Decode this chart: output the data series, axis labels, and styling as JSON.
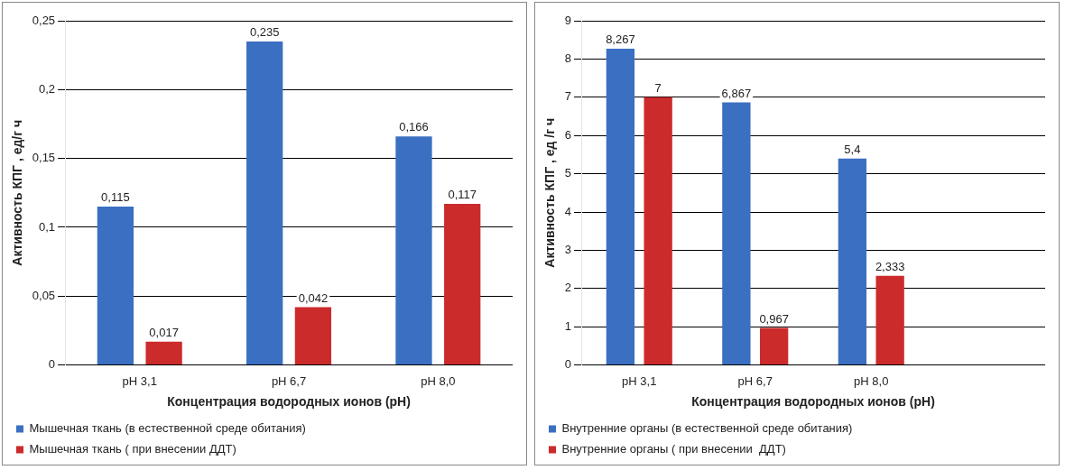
{
  "chart_data": [
    {
      "type": "bar",
      "xlabel": "Концентрация водородных ионов (pH)",
      "ylabel": "Активность КПГ , ед/г ч",
      "categories": [
        "pH 3,1",
        "pH 6,7",
        "pH 8,0"
      ],
      "series": [
        {
          "name": "Мышечная ткань (в естественной среде обитания)",
          "color": "#3b6fc2",
          "values": [
            0.115,
            0.235,
            0.166
          ],
          "value_labels": [
            "0,115",
            "0,235",
            "0,166"
          ]
        },
        {
          "name": "Мышечная ткань ( при внесении ДДТ)",
          "color": "#cc2b2b",
          "values": [
            0.017,
            0.042,
            0.117
          ],
          "value_labels": [
            "0,017",
            "0,042",
            "0,117"
          ]
        }
      ],
      "ylim": [
        0,
        0.25
      ],
      "yticks": [
        0,
        {
          "value": 0.05,
          "label": "0,05"
        },
        {
          "value": 0.1,
          "label": "0,1"
        },
        {
          "value": 0.15,
          "label": "0,15"
        },
        {
          "value": 0.2,
          "label": "0,2"
        },
        {
          "value": 0.25,
          "label": "0,25"
        }
      ],
      "grid": "y",
      "legend": "bottom"
    },
    {
      "type": "bar",
      "xlabel": "Концентрация водородных ионов (pH)",
      "ylabel": "Активность КПГ , ед /г ч",
      "categories": [
        "pH 3,1",
        "pH 6,7",
        "pH 8,0",
        null
      ],
      "series": [
        {
          "name": "Внутренние органы (в естественной среде обитания)",
          "color": "#3b6fc2",
          "values": [
            8.267,
            6.867,
            5.4,
            null
          ],
          "value_labels": [
            "8,267",
            "6,867",
            "5,4",
            null
          ]
        },
        {
          "name": "Внутренние органы ( при внесении  ДДТ)",
          "color": "#cc2b2b",
          "values": [
            7,
            0.967,
            2.333,
            null
          ],
          "value_labels": [
            "7",
            "0,967",
            "2,333",
            null
          ]
        }
      ],
      "ylim": [
        0,
        9
      ],
      "yticks": [
        0,
        1,
        2,
        3,
        4,
        5,
        6,
        7,
        8,
        9
      ],
      "grid": "y",
      "legend": "bottom"
    }
  ]
}
